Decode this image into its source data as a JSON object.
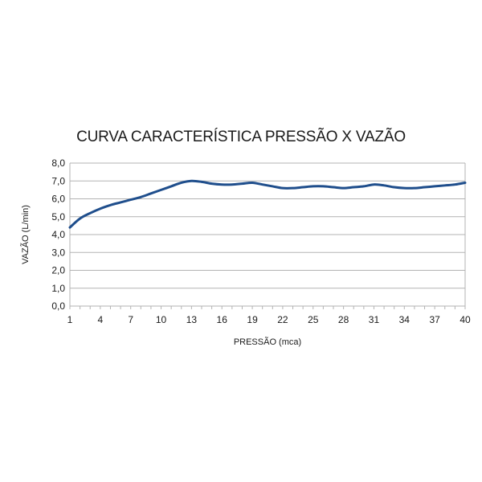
{
  "chart_data": {
    "type": "line",
    "title": "CURVA CARACTERÍSTICA PRESSÃO X VAZÃO",
    "xlabel": "PRESSÃO (mca)",
    "ylabel": "VAZÃO (L/min)",
    "ylim": [
      0,
      8
    ],
    "y_ticks": [
      "0,0",
      "1,0",
      "2,0",
      "3,0",
      "4,0",
      "5,0",
      "6,0",
      "7,0",
      "8,0"
    ],
    "x_tick_labels": [
      "1",
      "4",
      "7",
      "10",
      "13",
      "16",
      "19",
      "22",
      "25",
      "28",
      "31",
      "34",
      "37",
      "40"
    ],
    "grid": true,
    "legend": "none",
    "line_color": "#1f4e8c",
    "x": [
      1,
      2,
      3,
      4,
      5,
      6,
      7,
      8,
      9,
      10,
      11,
      12,
      13,
      14,
      15,
      16,
      17,
      18,
      19,
      20,
      21,
      22,
      23,
      24,
      25,
      26,
      27,
      28,
      29,
      30,
      31,
      32,
      33,
      34,
      35,
      36,
      37,
      38,
      39,
      40
    ],
    "values": [
      4.4,
      4.9,
      5.2,
      5.45,
      5.65,
      5.8,
      5.95,
      6.1,
      6.3,
      6.5,
      6.7,
      6.9,
      7.0,
      6.95,
      6.85,
      6.8,
      6.8,
      6.85,
      6.9,
      6.8,
      6.7,
      6.6,
      6.6,
      6.65,
      6.7,
      6.7,
      6.65,
      6.6,
      6.65,
      6.7,
      6.8,
      6.75,
      6.65,
      6.6,
      6.6,
      6.65,
      6.7,
      6.75,
      6.8,
      6.9
    ]
  }
}
